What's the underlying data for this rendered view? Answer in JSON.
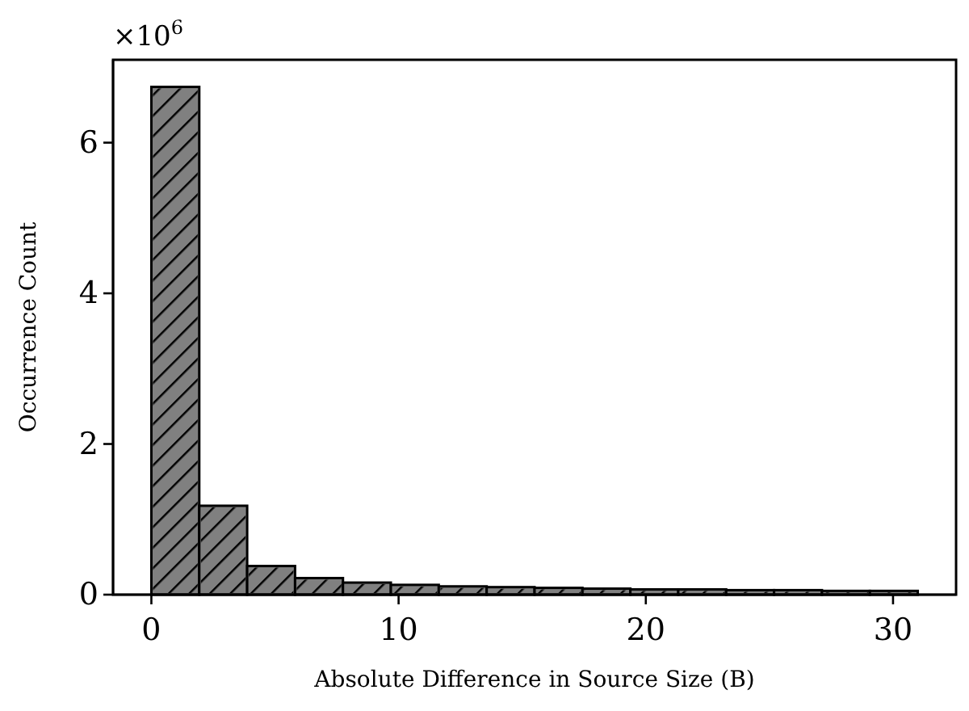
{
  "chart_data": {
    "type": "histogram",
    "xlabel": "Absolute Difference in Source Size (B)",
    "ylabel": "Occurrence Count",
    "bins": [
      0,
      1.9375,
      3.875,
      5.8125,
      7.75,
      9.6875,
      11.625,
      13.5625,
      15.5,
      17.4375,
      19.375,
      21.3125,
      23.25,
      25.1875,
      27.125,
      29.0625,
      31
    ],
    "values": [
      6.74,
      1.18,
      0.38,
      0.22,
      0.16,
      0.13,
      0.11,
      0.1,
      0.09,
      0.08,
      0.07,
      0.07,
      0.06,
      0.06,
      0.05,
      0.05
    ],
    "color": "#808080",
    "xlim": [
      -1.55,
      32.55
    ],
    "xticks": [
      0,
      10,
      20,
      30
    ],
    "ylim": [
      0,
      7.1
    ],
    "yticks": [
      0,
      2,
      4,
      6
    ],
    "annotations": [
      "×10$^{6}$"
    ]
  }
}
